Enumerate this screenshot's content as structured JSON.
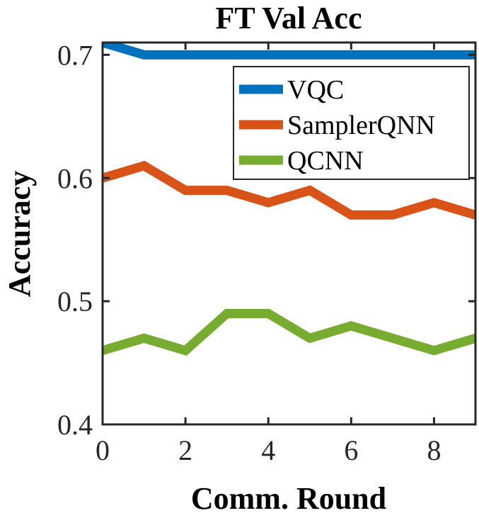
{
  "chart_data": {
    "type": "line",
    "title": "FT Val Acc",
    "xlabel": "Comm. Round",
    "ylabel": "Accuracy",
    "xlim": [
      0,
      9
    ],
    "ylim": [
      0.4,
      0.71
    ],
    "xticks": [
      0,
      2,
      4,
      6,
      8
    ],
    "xtick_labels": [
      "0",
      "2",
      "4",
      "6",
      "8"
    ],
    "yticks": [
      0.4,
      0.5,
      0.6,
      0.7
    ],
    "ytick_labels": [
      "0.4",
      "0.5",
      "0.6",
      "0.7"
    ],
    "legend_position": "top-right",
    "grid": false,
    "x": [
      0,
      1,
      2,
      3,
      4,
      5,
      6,
      7,
      8,
      9
    ],
    "series": [
      {
        "name": "VQC",
        "color": "#0072BD",
        "values": [
          0.71,
          0.7,
          0.7,
          0.7,
          0.7,
          0.7,
          0.7,
          0.7,
          0.7,
          0.7
        ]
      },
      {
        "name": "SamplerQNN",
        "color": "#D95319",
        "values": [
          0.6,
          0.61,
          0.59,
          0.59,
          0.58,
          0.59,
          0.57,
          0.57,
          0.58,
          0.57
        ]
      },
      {
        "name": "QCNN",
        "color": "#77AC30",
        "values": [
          0.46,
          0.47,
          0.46,
          0.49,
          0.49,
          0.47,
          0.48,
          0.47,
          0.46,
          0.47
        ]
      }
    ]
  }
}
